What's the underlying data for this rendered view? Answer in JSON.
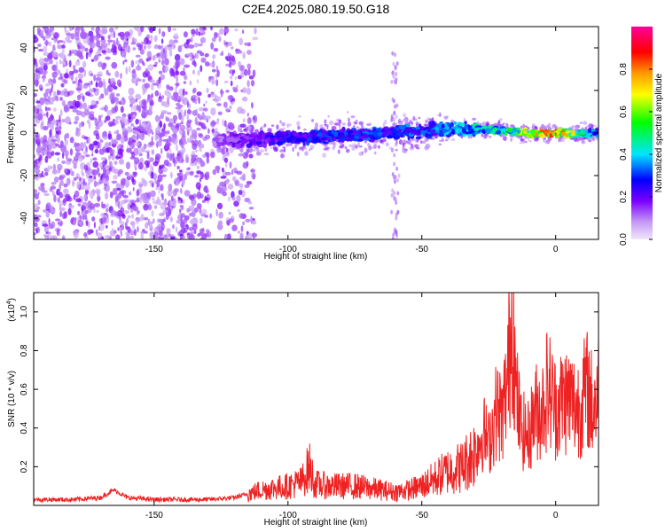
{
  "chart_data": [
    {
      "type": "heatmap",
      "title": "C2E4.2025.080.19.50.G18",
      "xlabel": "Height of straight line (km)",
      "ylabel": "Frequency (Hz)",
      "xlim": [
        -195,
        16
      ],
      "ylim": [
        -50,
        50
      ],
      "xticks": [
        -150,
        -100,
        -50,
        0
      ],
      "xtick_labels": [
        "-150",
        "-100",
        "-50",
        "0"
      ],
      "yticks": [
        -40,
        -20,
        0,
        20,
        40
      ],
      "ytick_labels": [
        "-40",
        "-20",
        "0",
        "20",
        "40"
      ],
      "colorbar": {
        "label": "Normalized spectral amplitude",
        "range": [
          0,
          1
        ],
        "ticks": [
          0.0,
          0.2,
          0.4,
          0.6,
          0.8
        ],
        "tick_labels": [
          "0.0",
          "0.2",
          "0.4",
          "0.6",
          "0.8"
        ],
        "colormap": "rainbow",
        "color_stops": [
          "#f2e6fc",
          "#7b00ff",
          "#0000ff",
          "#00e5ff",
          "#00ff00",
          "#ffff00",
          "#ff9900",
          "#ff0000",
          "#ff0099"
        ]
      },
      "ridge": {
        "x": [
          -130,
          -120,
          -110,
          -100,
          -90,
          -80,
          -70,
          -60,
          -50,
          -40,
          -30,
          -20,
          -10,
          0,
          10,
          16
        ],
        "y": [
          -4,
          -3,
          -3,
          -2,
          -2,
          -1,
          -1,
          0,
          1,
          2,
          2,
          1,
          0,
          0,
          0,
          0
        ],
        "amplitude": [
          0.12,
          0.2,
          0.25,
          0.3,
          0.32,
          0.32,
          0.33,
          0.34,
          0.35,
          0.4,
          0.45,
          0.55,
          0.7,
          0.95,
          0.55,
          0.35
        ]
      },
      "noise_region": {
        "x": [
          -195,
          -120
        ],
        "amplitude": [
          0.05,
          0.15
        ]
      }
    },
    {
      "type": "line",
      "title": "",
      "xlabel": "Height of straight line (km)",
      "ylabel": "SNR (10 * v/v)",
      "y_multiplier": "(x10",
      "y_multiplier_exp": "4",
      "y_multiplier_close": ")",
      "xlim": [
        -195,
        16
      ],
      "ylim": [
        0,
        1.1
      ],
      "xticks": [
        -150,
        -100,
        -50,
        0
      ],
      "xtick_labels": [
        "-150",
        "-100",
        "-50",
        "0"
      ],
      "yticks": [
        0.2,
        0.4,
        0.6,
        0.8,
        1.0
      ],
      "ytick_labels": [
        "0.2",
        "0.4",
        "0.6",
        "0.8",
        "1.0"
      ],
      "series": [
        {
          "color": "#ee2222",
          "x": [
            -195,
            -180,
            -170,
            -165,
            -160,
            -150,
            -140,
            -130,
            -120,
            -115,
            -110,
            -105,
            -100,
            -95,
            -92,
            -90,
            -85,
            -80,
            -75,
            -70,
            -65,
            -60,
            -55,
            -50,
            -45,
            -40,
            -35,
            -30,
            -27,
            -25,
            -22,
            -20,
            -18,
            -17,
            -16,
            -15,
            -13,
            -10,
            -8,
            -5,
            -3,
            0,
            3,
            5,
            8,
            10,
            12,
            14,
            16
          ],
          "y": [
            0.03,
            0.03,
            0.04,
            0.08,
            0.04,
            0.03,
            0.03,
            0.03,
            0.04,
            0.06,
            0.08,
            0.09,
            0.1,
            0.12,
            0.2,
            0.11,
            0.1,
            0.1,
            0.1,
            0.09,
            0.08,
            0.07,
            0.08,
            0.1,
            0.14,
            0.18,
            0.2,
            0.28,
            0.38,
            0.32,
            0.5,
            0.45,
            0.65,
            0.85,
            1.07,
            0.6,
            0.4,
            0.35,
            0.48,
            0.5,
            0.62,
            0.5,
            0.55,
            0.55,
            0.5,
            0.55,
            0.6,
            0.5,
            0.6
          ]
        }
      ]
    }
  ]
}
